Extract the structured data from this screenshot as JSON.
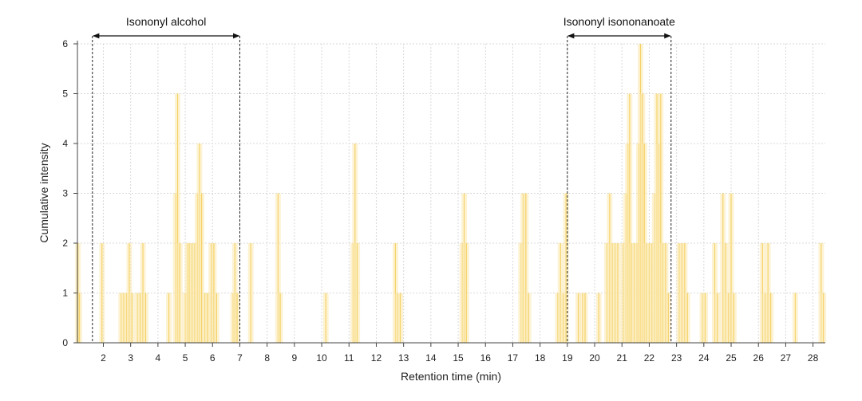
{
  "chart_data": {
    "type": "bar",
    "xlabel": "Retention time (min)",
    "ylabel": "Cumulative intensity",
    "xlim": [
      1.05,
      28.45
    ],
    "ylim": [
      0,
      6
    ],
    "xticks": [
      2,
      3,
      4,
      5,
      6,
      7,
      8,
      9,
      10,
      11,
      12,
      13,
      14,
      15,
      16,
      17,
      18,
      19,
      20,
      21,
      22,
      23,
      24,
      25,
      26,
      27,
      28
    ],
    "yticks": [
      0,
      1,
      2,
      3,
      4,
      5,
      6
    ],
    "bar_color": "#f5d36a",
    "bar_fill": "#fbe9b0",
    "grid": true,
    "regions": [
      {
        "name": "Isononyl alcohol",
        "start": 1.6,
        "end": 7.0
      },
      {
        "name": "Isononyl isononanoate",
        "start": 19.0,
        "end": 22.8
      }
    ],
    "peaks": [
      {
        "x": 1.07,
        "y": 2
      },
      {
        "x": 1.12,
        "y": 1
      },
      {
        "x": 1.95,
        "y": 2
      },
      {
        "x": 2.65,
        "y": 1
      },
      {
        "x": 2.75,
        "y": 1
      },
      {
        "x": 2.85,
        "y": 1
      },
      {
        "x": 2.95,
        "y": 2
      },
      {
        "x": 3.05,
        "y": 1
      },
      {
        "x": 3.25,
        "y": 1
      },
      {
        "x": 3.35,
        "y": 1
      },
      {
        "x": 3.45,
        "y": 2
      },
      {
        "x": 3.55,
        "y": 1
      },
      {
        "x": 4.4,
        "y": 1
      },
      {
        "x": 4.65,
        "y": 3
      },
      {
        "x": 4.72,
        "y": 5
      },
      {
        "x": 4.8,
        "y": 2
      },
      {
        "x": 5.0,
        "y": 1
      },
      {
        "x": 5.08,
        "y": 2
      },
      {
        "x": 5.15,
        "y": 2
      },
      {
        "x": 5.25,
        "y": 2
      },
      {
        "x": 5.35,
        "y": 2
      },
      {
        "x": 5.45,
        "y": 3
      },
      {
        "x": 5.52,
        "y": 4
      },
      {
        "x": 5.6,
        "y": 3
      },
      {
        "x": 5.72,
        "y": 1
      },
      {
        "x": 5.82,
        "y": 1
      },
      {
        "x": 5.95,
        "y": 2
      },
      {
        "x": 6.05,
        "y": 2
      },
      {
        "x": 6.15,
        "y": 1
      },
      {
        "x": 6.75,
        "y": 1
      },
      {
        "x": 6.82,
        "y": 2
      },
      {
        "x": 6.9,
        "y": 1
      },
      {
        "x": 7.4,
        "y": 2
      },
      {
        "x": 8.4,
        "y": 3
      },
      {
        "x": 8.48,
        "y": 1
      },
      {
        "x": 10.15,
        "y": 1
      },
      {
        "x": 11.15,
        "y": 2
      },
      {
        "x": 11.22,
        "y": 4
      },
      {
        "x": 11.3,
        "y": 2
      },
      {
        "x": 12.7,
        "y": 2
      },
      {
        "x": 12.78,
        "y": 1
      },
      {
        "x": 12.88,
        "y": 1
      },
      {
        "x": 15.15,
        "y": 2
      },
      {
        "x": 15.22,
        "y": 3
      },
      {
        "x": 15.3,
        "y": 2
      },
      {
        "x": 17.3,
        "y": 2
      },
      {
        "x": 17.38,
        "y": 3
      },
      {
        "x": 17.48,
        "y": 3
      },
      {
        "x": 17.58,
        "y": 1
      },
      {
        "x": 18.65,
        "y": 1
      },
      {
        "x": 18.75,
        "y": 2
      },
      {
        "x": 18.85,
        "y": 1
      },
      {
        "x": 18.95,
        "y": 3
      },
      {
        "x": 19.4,
        "y": 1
      },
      {
        "x": 19.55,
        "y": 1
      },
      {
        "x": 19.65,
        "y": 1
      },
      {
        "x": 20.15,
        "y": 1
      },
      {
        "x": 20.45,
        "y": 2
      },
      {
        "x": 20.55,
        "y": 3
      },
      {
        "x": 20.65,
        "y": 2
      },
      {
        "x": 20.75,
        "y": 2
      },
      {
        "x": 20.85,
        "y": 2
      },
      {
        "x": 21.05,
        "y": 2
      },
      {
        "x": 21.15,
        "y": 3
      },
      {
        "x": 21.22,
        "y": 4
      },
      {
        "x": 21.28,
        "y": 5
      },
      {
        "x": 21.35,
        "y": 2
      },
      {
        "x": 21.45,
        "y": 2
      },
      {
        "x": 21.55,
        "y": 2
      },
      {
        "x": 21.62,
        "y": 4
      },
      {
        "x": 21.68,
        "y": 6
      },
      {
        "x": 21.75,
        "y": 5
      },
      {
        "x": 21.82,
        "y": 4
      },
      {
        "x": 21.9,
        "y": 2
      },
      {
        "x": 22.0,
        "y": 2
      },
      {
        "x": 22.1,
        "y": 2
      },
      {
        "x": 22.2,
        "y": 3
      },
      {
        "x": 22.28,
        "y": 5
      },
      {
        "x": 22.35,
        "y": 4
      },
      {
        "x": 22.42,
        "y": 5
      },
      {
        "x": 22.5,
        "y": 2
      },
      {
        "x": 22.6,
        "y": 2
      },
      {
        "x": 22.7,
        "y": 1
      },
      {
        "x": 23.1,
        "y": 2
      },
      {
        "x": 23.2,
        "y": 2
      },
      {
        "x": 23.3,
        "y": 2
      },
      {
        "x": 23.4,
        "y": 1
      },
      {
        "x": 23.95,
        "y": 1
      },
      {
        "x": 24.05,
        "y": 1
      },
      {
        "x": 24.4,
        "y": 2
      },
      {
        "x": 24.5,
        "y": 1
      },
      {
        "x": 24.7,
        "y": 3
      },
      {
        "x": 24.8,
        "y": 2
      },
      {
        "x": 24.9,
        "y": 1
      },
      {
        "x": 25.0,
        "y": 3
      },
      {
        "x": 25.1,
        "y": 1
      },
      {
        "x": 26.15,
        "y": 2
      },
      {
        "x": 26.25,
        "y": 1
      },
      {
        "x": 26.35,
        "y": 2
      },
      {
        "x": 26.45,
        "y": 1
      },
      {
        "x": 27.35,
        "y": 1
      },
      {
        "x": 28.3,
        "y": 2
      },
      {
        "x": 28.38,
        "y": 1
      }
    ]
  }
}
